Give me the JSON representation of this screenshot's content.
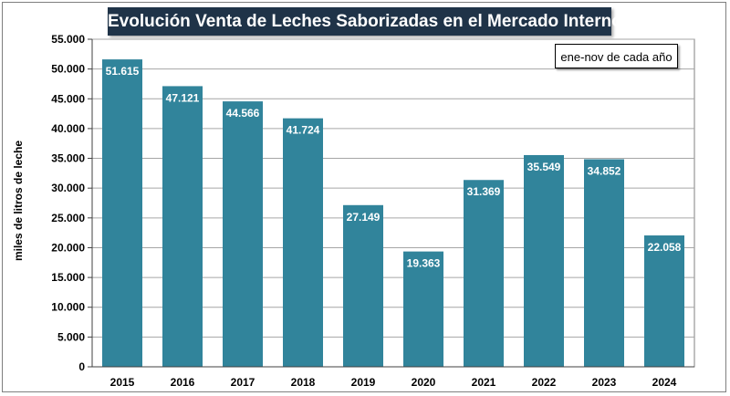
{
  "chart_data": {
    "type": "bar",
    "title": "Evolución Venta de Leches Saborizadas en el Mercado Interno",
    "note": "ene-nov de cada año",
    "xlabel": "",
    "ylabel": "miles de litros de leche",
    "categories": [
      "2015",
      "2016",
      "2017",
      "2018",
      "2019",
      "2020",
      "2021",
      "2022",
      "2023",
      "2024"
    ],
    "values": [
      51615,
      47121,
      44566,
      41724,
      27149,
      19363,
      31369,
      35549,
      34852,
      22058
    ],
    "value_labels": [
      "51.615",
      "47.121",
      "44.566",
      "41.724",
      "27.149",
      "19.363",
      "31.369",
      "35.549",
      "34.852",
      "22.058"
    ],
    "ylim": [
      0,
      55000
    ],
    "yticks": [
      0,
      5000,
      10000,
      15000,
      20000,
      25000,
      30000,
      35000,
      40000,
      45000,
      50000,
      55000
    ],
    "ytick_labels": [
      "0",
      "5.000",
      "10.000",
      "15.000",
      "20.000",
      "25.000",
      "30.000",
      "35.000",
      "40.000",
      "45.000",
      "50.000",
      "55.000"
    ],
    "grid": true,
    "bar_color": "#31849b",
    "title_bg_color": "#1f3348"
  }
}
